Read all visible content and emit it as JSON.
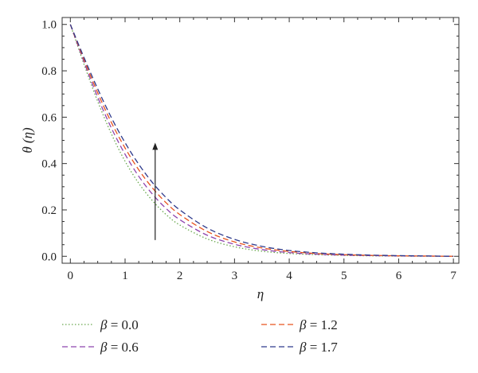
{
  "chart_data": {
    "type": "line",
    "xlabel": "η",
    "ylabel": "θ (η)",
    "xlim": [
      -0.15,
      7.1
    ],
    "ylim": [
      -0.03,
      1.03
    ],
    "x_ticks": [
      "0",
      "1",
      "2",
      "3",
      "4",
      "5",
      "6",
      "7"
    ],
    "y_ticks": [
      "0.0",
      "0.2",
      "0.4",
      "0.6",
      "0.8",
      "1.0"
    ],
    "grid": false,
    "legend_position": "below plot, two columns",
    "annotation": "upward arrow indicating increasing β (from θ≈0.07 to θ≈0.48 at η≈1.55)",
    "x": [
      0,
      0.25,
      0.5,
      0.75,
      1.0,
      1.25,
      1.5,
      1.75,
      2.0,
      2.5,
      3.0,
      3.5,
      4.0,
      4.5,
      5.0,
      5.5,
      6.0,
      6.5,
      7.0
    ],
    "series": [
      {
        "name": "β = 0.0",
        "legend_prefix": "β",
        "legend_value": "= 0.0",
        "color": "#6aa84f",
        "dash": "dotted",
        "values": [
          1.0,
          0.828,
          0.668,
          0.528,
          0.41,
          0.315,
          0.24,
          0.18,
          0.135,
          0.075,
          0.041,
          0.022,
          0.012,
          0.007,
          0.004,
          0.002,
          0.001,
          0.0005,
          0.0
        ]
      },
      {
        "name": "β = 0.6",
        "legend_prefix": "β",
        "legend_value": "= 0.6",
        "color": "#8e44ad",
        "dash": "dashed",
        "values": [
          1.0,
          0.838,
          0.686,
          0.553,
          0.44,
          0.345,
          0.268,
          0.206,
          0.158,
          0.091,
          0.052,
          0.029,
          0.016,
          0.009,
          0.005,
          0.003,
          0.0015,
          0.0008,
          0.0
        ]
      },
      {
        "name": "β = 1.2",
        "legend_prefix": "β",
        "legend_value": "= 1.2",
        "color": "#e8541e",
        "dash": "dashed",
        "values": [
          1.0,
          0.848,
          0.705,
          0.577,
          0.467,
          0.373,
          0.295,
          0.231,
          0.18,
          0.107,
          0.062,
          0.036,
          0.021,
          0.012,
          0.007,
          0.004,
          0.002,
          0.001,
          0.0
        ]
      },
      {
        "name": "β = 1.7",
        "legend_prefix": "β",
        "legend_value": "= 1.7",
        "color": "#2e3a8c",
        "dash": "dashed",
        "values": [
          1.0,
          0.857,
          0.722,
          0.598,
          0.49,
          0.397,
          0.318,
          0.253,
          0.2,
          0.122,
          0.073,
          0.043,
          0.025,
          0.015,
          0.009,
          0.005,
          0.003,
          0.0015,
          0.0
        ]
      }
    ]
  }
}
